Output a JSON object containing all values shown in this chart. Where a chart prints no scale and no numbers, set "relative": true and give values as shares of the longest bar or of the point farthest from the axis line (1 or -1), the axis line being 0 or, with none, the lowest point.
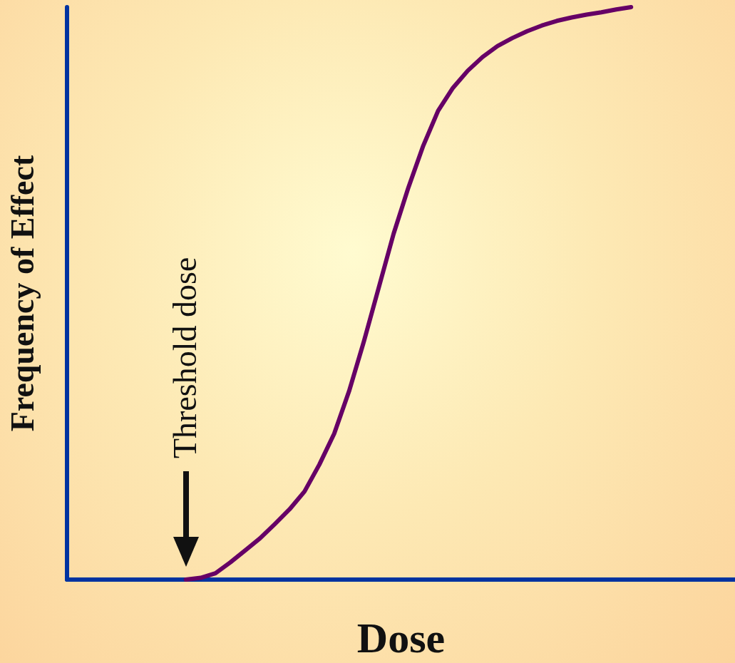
{
  "chart_data": {
    "type": "line",
    "relative": true,
    "xlabel": "Dose",
    "ylabel": "Frequency of Effect",
    "annotations": [
      "Threshold dose"
    ],
    "tick_labels": false,
    "marker": "none",
    "line_style": "solid",
    "categories": [
      null,
      null,
      null,
      null,
      null,
      null,
      null,
      null,
      null,
      null,
      null,
      null,
      null,
      null,
      null,
      null,
      null,
      null,
      null,
      null,
      null,
      null,
      null,
      null,
      null,
      null,
      null,
      null,
      null,
      null,
      null,
      null,
      null,
      null,
      null,
      null,
      null,
      null,
      null,
      null,
      null,
      null,
      null,
      null,
      null,
      null
    ],
    "series": [
      {
        "color": "#660066",
        "values": [
          null,
          null,
          null,
          null,
          null,
          null,
          null,
          null,
          0,
          0.003,
          0.011,
          0.03,
          0.051,
          0.072,
          0.097,
          0.123,
          0.154,
          0.201,
          0.255,
          0.329,
          0.416,
          0.51,
          0.604,
          0.685,
          0.758,
          0.819,
          0.859,
          0.889,
          0.913,
          0.932,
          0.946,
          0.958,
          0.968,
          0.976,
          0.982,
          0.987,
          0.991,
          0.996,
          1,
          null,
          null,
          null,
          null,
          null,
          null,
          null
        ]
      }
    ]
  }
}
